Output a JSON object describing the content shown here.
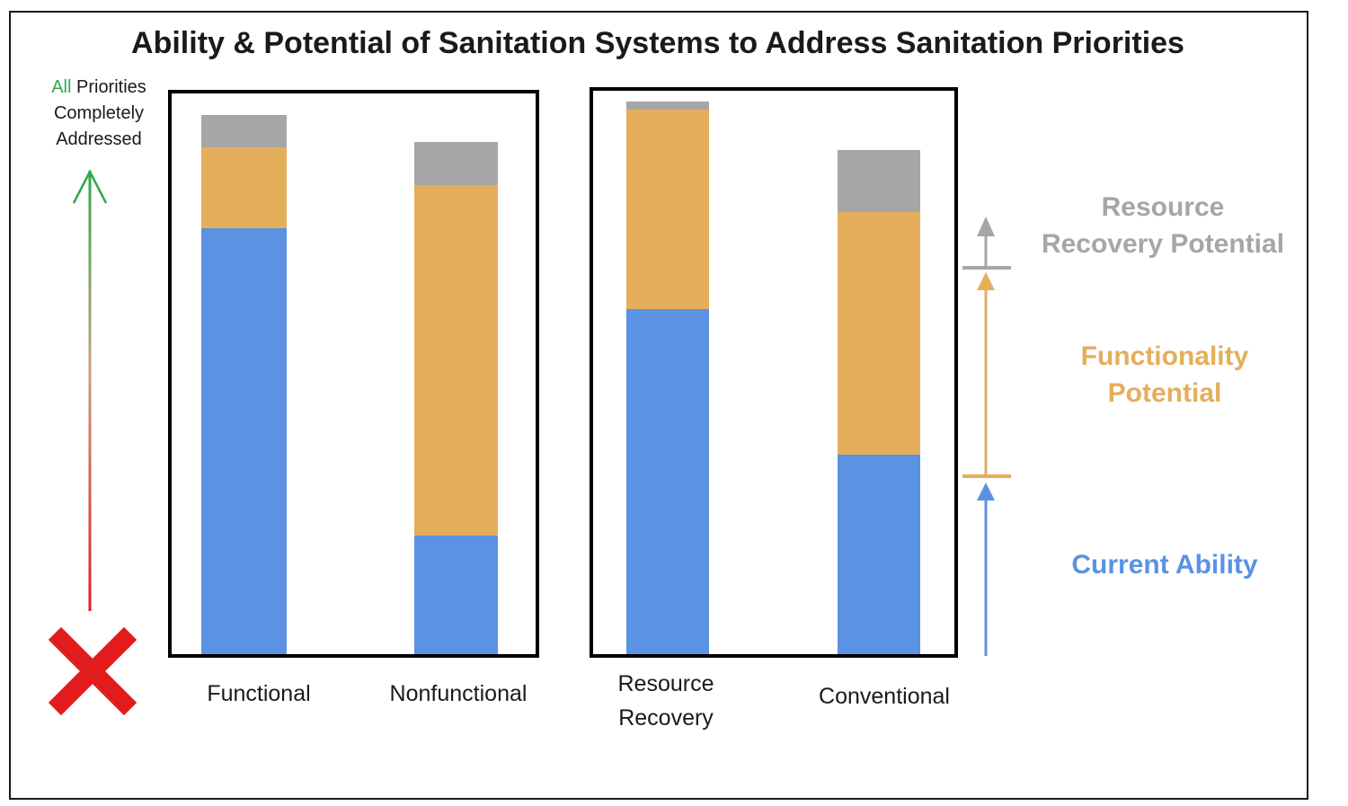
{
  "chart_data": {
    "type": "bar",
    "stacked": true,
    "title": "Ability & Potential of Sanitation Systems to Address Sanitation Priorities",
    "ylabel": {
      "top_word_highlight": "All",
      "top_rest": [
        " Priorities",
        "Completely",
        "Addressed"
      ]
    },
    "categories": [
      "Functional",
      "Nonfunctional",
      "Resource Recovery",
      "Conventional"
    ],
    "category_label_lines": [
      [
        "Functional"
      ],
      [
        "Nonfunctional"
      ],
      [
        "Resource",
        "Recovery"
      ],
      [
        "Conventional"
      ]
    ],
    "groups": [
      [
        0,
        1
      ],
      [
        2,
        3
      ]
    ],
    "ylim": [
      0,
      100
    ],
    "series": [
      {
        "name": "Current Ability",
        "values": [
          79,
          22,
          64,
          37
        ]
      },
      {
        "name": "Functionality Potential",
        "values": [
          15,
          65,
          37,
          45
        ]
      },
      {
        "name": "Resource Recovery Potential",
        "values": [
          6,
          8,
          1.5,
          11.5
        ]
      }
    ],
    "legend_placement": "right",
    "grid": false
  },
  "colors": {
    "current": "#5b92e2",
    "functionality": "#e5ae5a",
    "recovery": "#a6a6a6",
    "green": "#2eaa4a",
    "red": "#e21c1c",
    "text": "#1a1a1a",
    "frame": "#000000"
  },
  "legend": {
    "recovery_lines": [
      "Resource",
      "Recovery Potential"
    ],
    "functionality_lines": [
      "Functionality",
      "Potential"
    ],
    "current_lines": [
      "Current Ability"
    ]
  },
  "icons": {
    "bottom": "red-x-icon",
    "top": "green-arrow-up-icon"
  }
}
